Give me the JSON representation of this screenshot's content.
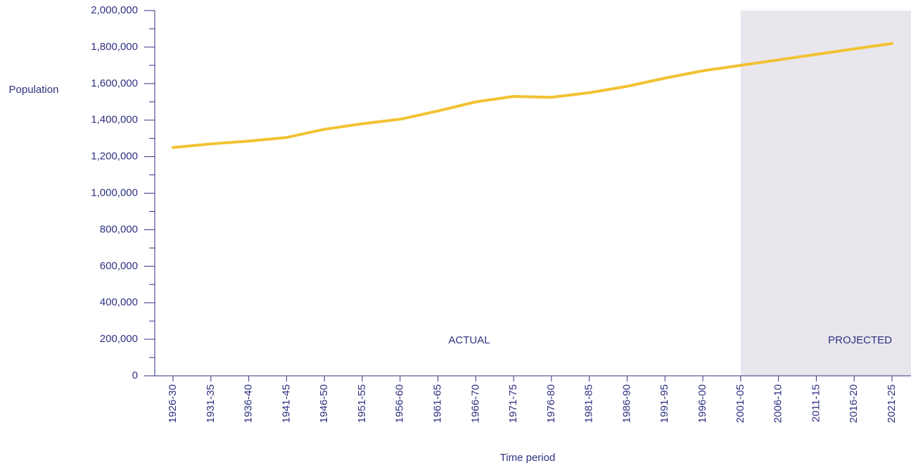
{
  "chart_data": {
    "type": "line",
    "x_label": "Time period",
    "y_label": "Population",
    "categories": [
      "1926-30",
      "1931-35",
      "1936-40",
      "1941-45",
      "1946-50",
      "1951-55",
      "1956-60",
      "1961-65",
      "1966-70",
      "1971-75",
      "1976-80",
      "1981-85",
      "1986-90",
      "1991-95",
      "1996-00",
      "2001-05",
      "2006-10",
      "2011-15",
      "2016-20",
      "2021-25"
    ],
    "series": [
      {
        "name": "Population",
        "color": "#f2c232",
        "values": [
          1250000,
          1270000,
          1285000,
          1305000,
          1350000,
          1380000,
          1405000,
          1450000,
          1500000,
          1530000,
          1525000,
          1550000,
          1585000,
          1630000,
          1670000,
          1700000,
          1730000,
          1760000,
          1790000,
          1820000
        ]
      }
    ],
    "ylim": [
      0,
      2000000
    ],
    "yticks": [
      0,
      {
        "value": 200000,
        "label": "200,000"
      },
      {
        "value": 400000,
        "label": "400,000"
      },
      {
        "value": 600000,
        "label": "600,000"
      },
      {
        "value": 800000,
        "label": "800,000"
      },
      {
        "value": 1000000,
        "label": "1,000,000"
      },
      {
        "value": 1200000,
        "label": "1,200,000"
      },
      {
        "value": 1400000,
        "label": "1,400,000"
      },
      {
        "value": 1600000,
        "label": "1,600,000"
      },
      {
        "value": 1800000,
        "label": "1,800,000"
      },
      {
        "value": 2000000,
        "label": "2,000,000"
      }
    ],
    "yminor_ticks": [
      100000,
      300000,
      500000,
      700000,
      900000,
      1100000,
      1300000,
      1500000,
      1700000,
      1900000
    ],
    "annotations": [
      "ACTUAL",
      "PROJECTED"
    ],
    "projected_from": "2001-05",
    "projected_color": "#e9e6ee"
  }
}
